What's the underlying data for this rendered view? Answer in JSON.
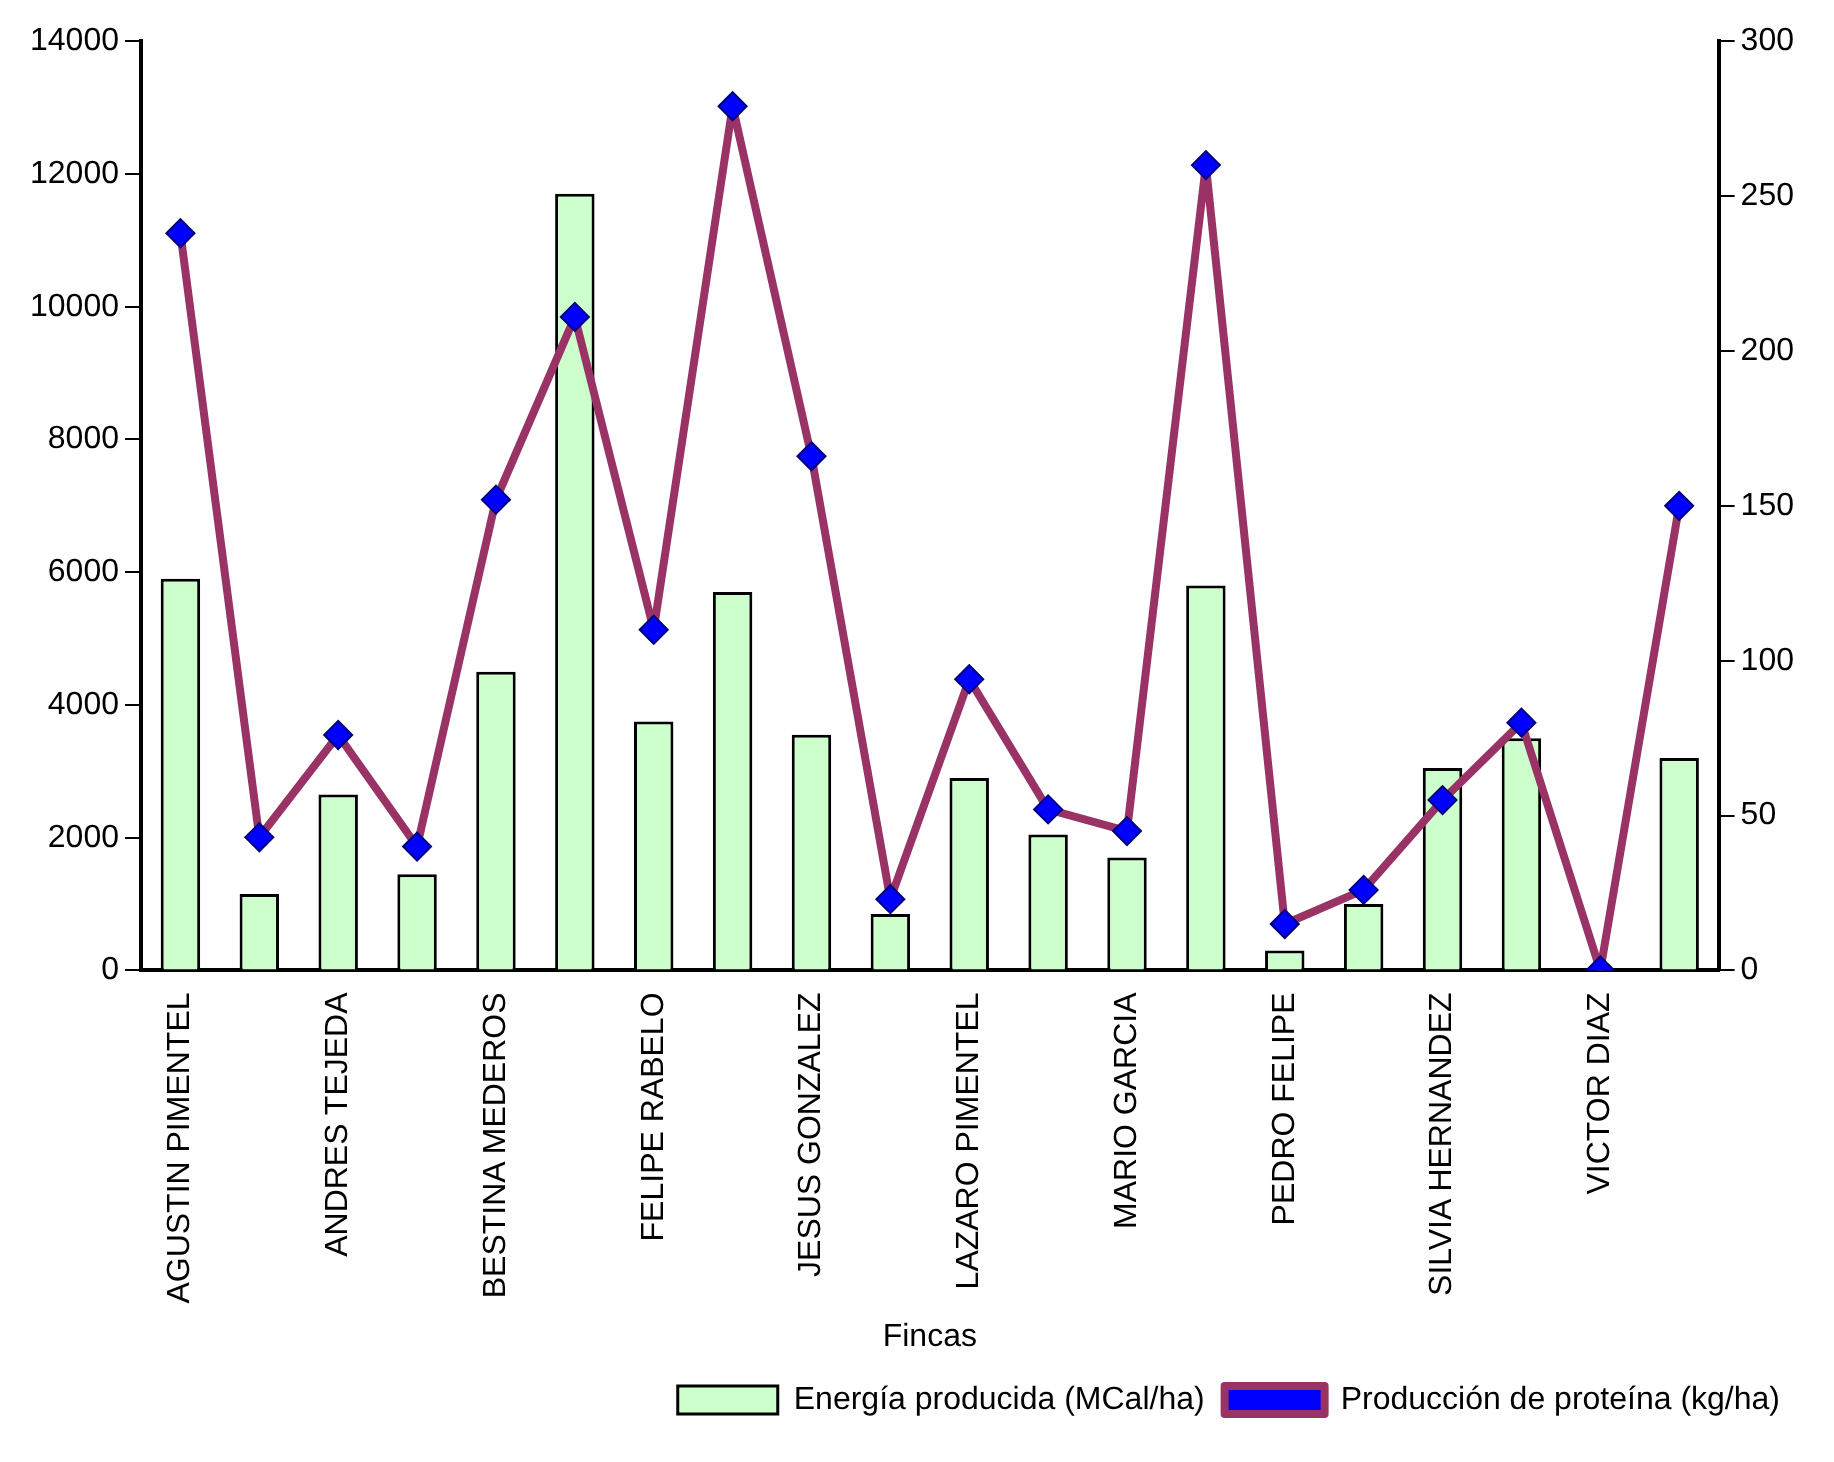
{
  "chart_data": {
    "type": "bar",
    "xlabel": "Fincas",
    "categories": [
      "AGUSTIN PIMENTEL",
      null,
      "ANDRES TEJEDA",
      null,
      "BESTINA MEDEROS",
      null,
      "FELIPE RABELO",
      null,
      "JESUS GONZALEZ",
      null,
      "LAZARO PIMENTEL",
      null,
      "MARIO GARCIA",
      null,
      "PEDRO FELIPE",
      null,
      "SILVIA HERNANDEZ",
      null,
      "VICTOR DIAZ",
      null
    ],
    "series": [
      {
        "name": "Energía producida (MCal/ha)",
        "color": "#ccffcc",
        "values": [
          5900,
          1150,
          2650,
          1450,
          4500,
          11700,
          3750,
          5700,
          3550,
          850,
          2900,
          2050,
          1700,
          5800,
          300,
          1000,
          3050,
          3500,
          0,
          3200
        ]
      },
      {
        "name": "Producción de proteína (kg/ha)",
        "type": "line",
        "axis": "y2",
        "color": "#993366",
        "marker": "diamond",
        "values": [
          238,
          43,
          76,
          40,
          152,
          211,
          110,
          279,
          166,
          23,
          94,
          52,
          45,
          260,
          15,
          26,
          55,
          80,
          0,
          150
        ]
      }
    ],
    "ylim": [
      0,
      14000
    ],
    "yticks": [
      0,
      2000,
      4000,
      6000,
      8000,
      10000,
      12000,
      14000
    ],
    "y2lim": [
      0,
      300
    ],
    "y2ticks": [
      0,
      50,
      100,
      150,
      200,
      250,
      300
    ],
    "grid": false,
    "legend": "bottom right"
  }
}
